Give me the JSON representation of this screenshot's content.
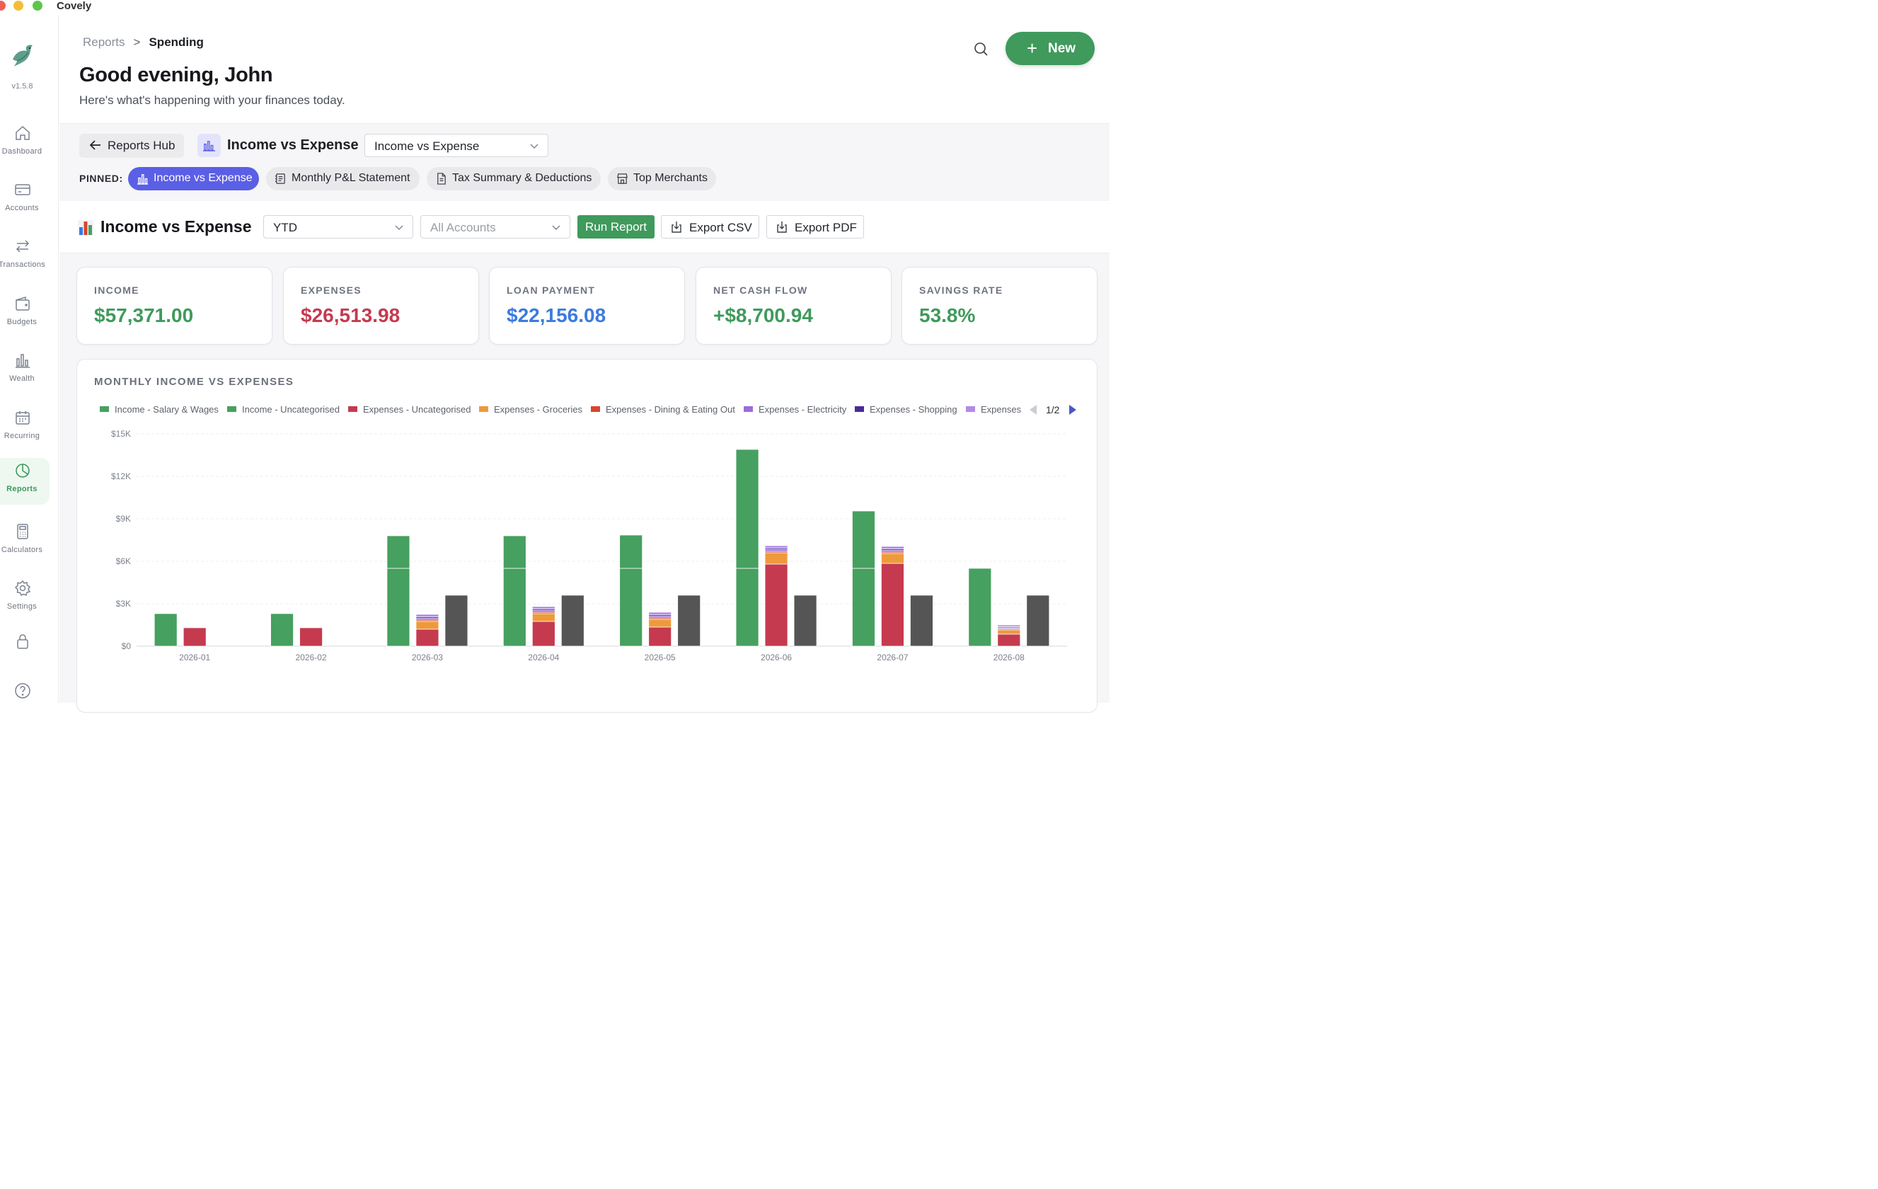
{
  "window": {
    "title": "Covely"
  },
  "sidebar": {
    "version": "v1.5.8",
    "items": [
      {
        "label": "Dashboard",
        "icon": "home-icon",
        "active": false
      },
      {
        "label": "Accounts",
        "icon": "credit-card-icon",
        "active": false
      },
      {
        "label": "Transactions",
        "icon": "swap-arrows-icon",
        "active": false
      },
      {
        "label": "Budgets",
        "icon": "wallet-icon",
        "active": false
      },
      {
        "label": "Wealth",
        "icon": "bar-chart-icon",
        "active": false
      },
      {
        "label": "Recurring",
        "icon": "calendar-icon",
        "active": false
      },
      {
        "label": "Reports",
        "icon": "pie-chart-icon",
        "active": true
      },
      {
        "label": "Calculators",
        "icon": "calculator-icon",
        "active": false
      },
      {
        "label": "Settings",
        "icon": "gear-icon",
        "active": false
      }
    ],
    "bottom_icons": [
      "lock-icon",
      "help-icon"
    ]
  },
  "header": {
    "breadcrumb": {
      "parent": "Reports",
      "separator": ">",
      "current": "Spending"
    },
    "greeting": "Good evening, John",
    "subtitle": "Here's what's happening with your finances today.",
    "new_button": "New"
  },
  "report_header": {
    "back_button": "Reports Hub",
    "title": "Income vs Expense",
    "selector_value": "Income vs Expense",
    "pinned_label": "PINNED:",
    "pinned": [
      {
        "label": "Income vs Expense",
        "icon": "bar-chart-icon",
        "active": true
      },
      {
        "label": "Monthly P&L Statement",
        "icon": "ledger-icon",
        "active": false
      },
      {
        "label": "Tax Summary & Deductions",
        "icon": "document-icon",
        "active": false
      },
      {
        "label": "Top Merchants",
        "icon": "store-icon",
        "active": false
      }
    ]
  },
  "toolbar": {
    "title": "Income vs Expense",
    "period_value": "YTD",
    "accounts_placeholder": "All Accounts",
    "run_label": "Run Report",
    "export_csv": "Export CSV",
    "export_pdf": "Export PDF"
  },
  "stats": [
    {
      "label": "INCOME",
      "value": "$57,371.00",
      "color": "#3f9a5c"
    },
    {
      "label": "EXPENSES",
      "value": "$26,513.98",
      "color": "#c53a4f"
    },
    {
      "label": "LOAN PAYMENT",
      "value": "$22,156.08",
      "color": "#3b7be0"
    },
    {
      "label": "NET CASH FLOW",
      "value": "+$8,700.94",
      "color": "#3f9a5c"
    },
    {
      "label": "SAVINGS RATE",
      "value": "53.8%",
      "color": "#3f9a5c"
    }
  ],
  "chart": {
    "heading": "MONTHLY INCOME VS EXPENSES",
    "pager": "1/2"
  },
  "chart_data": {
    "type": "bar",
    "title": "MONTHLY INCOME VS EXPENSES",
    "xlabel": "",
    "ylabel": "",
    "ylim": [
      0,
      15000
    ],
    "yticks": [
      0,
      3000,
      6000,
      9000,
      12000,
      15000
    ],
    "ytick_labels": [
      "$0",
      "$3K",
      "$6K",
      "$9K",
      "$12K",
      "$15K"
    ],
    "grid": true,
    "legend_position": "top",
    "categories": [
      "2026-01",
      "2026-02",
      "2026-03",
      "2026-04",
      "2026-05",
      "2026-06",
      "2026-07",
      "2026-08"
    ],
    "legend": [
      {
        "name": "Income - Salary & Wages",
        "color": "#46a05f"
      },
      {
        "name": "Income - Uncategorised",
        "color": "#46a05f"
      },
      {
        "name": "Expenses - Uncategorised",
        "color": "#c53a4f"
      },
      {
        "name": "Expenses - Groceries",
        "color": "#ee9a3c"
      },
      {
        "name": "Expenses - Dining & Eating Out",
        "color": "#d9452c"
      },
      {
        "name": "Expenses - Electricity",
        "color": "#9a6ce0"
      },
      {
        "name": "Expenses - Shopping",
        "color": "#4a2a9a"
      },
      {
        "name": "Expenses",
        "color": "#b28ae8"
      }
    ],
    "stacks": [
      {
        "stack": "income",
        "series": [
          {
            "name": "Income - Salary & Wages",
            "color": "#46a05f",
            "values": [
              2300,
              2300,
              5500,
              5500,
              5500,
              5500,
              5500,
              5500
            ]
          },
          {
            "name": "Income - Uncategorised",
            "color": "#46a05f",
            "values": [
              0,
              0,
              2300,
              2300,
              2350,
              8400,
              4050,
              0
            ]
          }
        ]
      },
      {
        "stack": "expenses",
        "series": [
          {
            "name": "Expenses - Uncategorised",
            "color": "#c53a4f",
            "values": [
              1300,
              1300,
              1200,
              1750,
              1350,
              5800,
              5850,
              850
            ]
          },
          {
            "name": "Expenses - Groceries",
            "color": "#ee9a3c",
            "values": [
              0,
              0,
              550,
              550,
              550,
              800,
              700,
              300
            ]
          },
          {
            "name": "Expenses - Dining & Eating Out",
            "color": "#d9452c",
            "values": [
              0,
              0,
              100,
              100,
              100,
              100,
              100,
              80
            ]
          },
          {
            "name": "Expenses - Electricity",
            "color": "#9a6ce0",
            "values": [
              0,
              0,
              120,
              120,
              120,
              120,
              120,
              80
            ]
          },
          {
            "name": "Expenses - Shopping",
            "color": "#4a2a9a",
            "values": [
              0,
              0,
              110,
              110,
              110,
              110,
              110,
              70
            ]
          },
          {
            "name": "Expenses",
            "color": "#b28ae8",
            "values": [
              0,
              0,
              170,
              170,
              170,
              170,
              170,
              120
            ]
          }
        ]
      },
      {
        "stack": "loan",
        "series": [
          {
            "name": "Loan payment",
            "color": "#555555",
            "values": [
              0,
              0,
              3600,
              3600,
              3600,
              3600,
              3600,
              3600
            ]
          }
        ]
      }
    ]
  }
}
